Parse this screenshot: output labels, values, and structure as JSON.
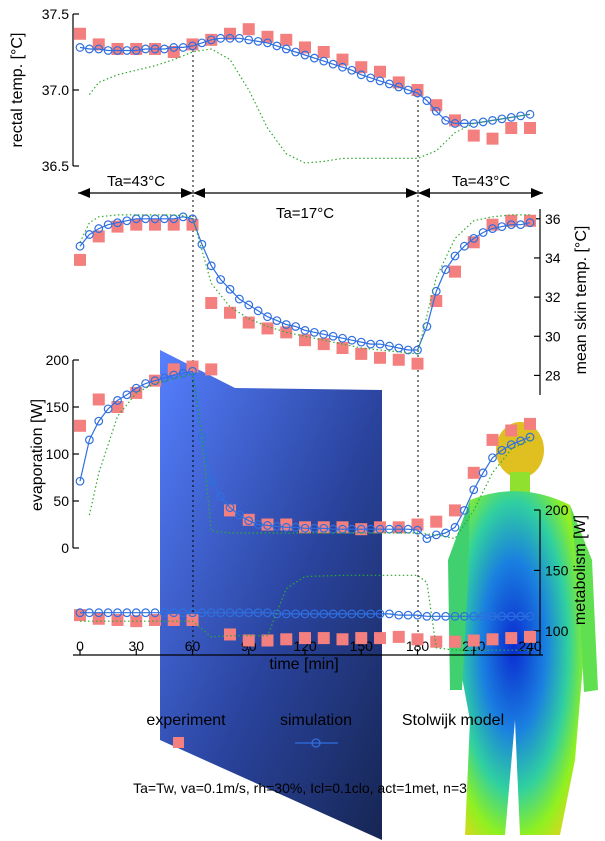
{
  "colors": {
    "experiment": "#f47f7f",
    "simulation": "#2f6fe0",
    "stolwijk": "#2faa2f",
    "panel_light": "#4d79ff",
    "panel_dark": "#0a1a4a"
  },
  "periods": [
    {
      "label": "Ta=43°C",
      "from": 0,
      "to": 60
    },
    {
      "label": "Ta=17°C",
      "from": 60,
      "to": 180
    },
    {
      "label": "Ta=43°C",
      "from": 180,
      "to": 240
    }
  ],
  "legend": {
    "experiment": "experiment",
    "simulation": "simulation",
    "stolwijk": "Stolwijk model"
  },
  "footnote": "Ta=Tw, va=0.1m/s, rh=30%, Icl=0.1clo, act=1met, n=3",
  "chart_data": [
    {
      "type": "line",
      "ylabel": "rectal temp. [°C]",
      "ylim": [
        36.5,
        37.5
      ],
      "yticks": [
        "37.5",
        "37.0",
        "36.5"
      ],
      "ytick_values": [
        37.5,
        37.0,
        36.5
      ],
      "xlim": [
        0,
        240
      ],
      "series": [
        {
          "name": "experiment",
          "style": "markers",
          "x": [
            0,
            10,
            20,
            30,
            40,
            50,
            60,
            70,
            80,
            90,
            100,
            110,
            120,
            130,
            140,
            150,
            160,
            170,
            180,
            190,
            200,
            210,
            220,
            230,
            240
          ],
          "y": [
            37.37,
            37.3,
            37.27,
            37.27,
            37.27,
            37.25,
            37.3,
            37.33,
            37.37,
            37.4,
            37.35,
            37.33,
            37.28,
            37.25,
            37.2,
            37.15,
            37.12,
            37.05,
            37.0,
            36.9,
            36.8,
            36.7,
            36.68,
            36.75,
            36.75
          ]
        },
        {
          "name": "simulation",
          "style": "line-circles",
          "x": [
            0,
            5,
            10,
            15,
            20,
            25,
            30,
            35,
            40,
            45,
            50,
            55,
            60,
            65,
            70,
            75,
            80,
            85,
            90,
            95,
            100,
            105,
            110,
            115,
            120,
            125,
            130,
            135,
            140,
            145,
            150,
            155,
            160,
            165,
            170,
            175,
            180,
            185,
            190,
            195,
            200,
            205,
            210,
            215,
            220,
            225,
            230,
            235,
            240
          ],
          "y": [
            37.28,
            37.27,
            37.27,
            37.26,
            37.26,
            37.26,
            37.26,
            37.27,
            37.27,
            37.27,
            37.28,
            37.28,
            37.29,
            37.31,
            37.33,
            37.34,
            37.34,
            37.34,
            37.33,
            37.32,
            37.31,
            37.29,
            37.27,
            37.25,
            37.23,
            37.21,
            37.19,
            37.17,
            37.15,
            37.13,
            37.1,
            37.08,
            37.06,
            37.04,
            37.02,
            37.0,
            36.98,
            36.93,
            36.86,
            36.8,
            36.78,
            36.78,
            36.78,
            36.79,
            36.8,
            36.81,
            36.82,
            36.83,
            36.84
          ]
        },
        {
          "name": "Stolwijk model",
          "style": "dotted",
          "x": [
            5,
            10,
            20,
            30,
            40,
            50,
            60,
            70,
            80,
            90,
            100,
            110,
            120,
            130,
            140,
            150,
            160,
            170,
            180,
            190,
            200,
            210,
            220,
            230,
            240
          ],
          "y": [
            36.97,
            37.05,
            37.1,
            37.13,
            37.16,
            37.2,
            37.25,
            37.27,
            37.2,
            37.0,
            36.75,
            36.58,
            36.52,
            36.53,
            36.55,
            36.55,
            36.55,
            36.55,
            36.55,
            36.6,
            36.72,
            36.78,
            36.8,
            36.82,
            36.84
          ]
        }
      ]
    },
    {
      "type": "line",
      "ylabel": "mean skin temp. [°C]",
      "ylim": [
        27,
        36.5
      ],
      "yticks": [
        "36",
        "34",
        "32",
        "30",
        "28"
      ],
      "ytick_values": [
        36,
        34,
        32,
        30,
        28
      ],
      "xlim": [
        0,
        240
      ],
      "series": [
        {
          "name": "experiment",
          "style": "markers",
          "x": [
            0,
            10,
            20,
            30,
            40,
            50,
            60,
            70,
            80,
            90,
            100,
            110,
            120,
            130,
            140,
            150,
            160,
            170,
            180,
            190,
            200,
            210,
            220,
            230,
            240
          ],
          "y": [
            33.9,
            35.1,
            35.6,
            35.7,
            35.7,
            35.7,
            35.7,
            31.7,
            31.2,
            30.7,
            30.4,
            30.2,
            29.8,
            29.6,
            29.4,
            29.1,
            28.9,
            28.8,
            28.6,
            31.8,
            33.3,
            34.8,
            35.7,
            35.9,
            35.9
          ]
        },
        {
          "name": "simulation",
          "style": "line-circles",
          "x": [
            0,
            5,
            10,
            15,
            20,
            25,
            30,
            35,
            40,
            45,
            50,
            55,
            60,
            65,
            70,
            75,
            80,
            85,
            90,
            95,
            100,
            105,
            110,
            115,
            120,
            125,
            130,
            135,
            140,
            145,
            150,
            155,
            160,
            165,
            170,
            175,
            180,
            185,
            190,
            195,
            200,
            205,
            210,
            215,
            220,
            225,
            230,
            235,
            240
          ],
          "y": [
            34.6,
            35.2,
            35.5,
            35.7,
            35.8,
            35.9,
            36.0,
            36.0,
            36.0,
            36.0,
            36.0,
            36.1,
            36.0,
            34.7,
            33.6,
            32.9,
            32.4,
            31.9,
            31.6,
            31.3,
            31.0,
            30.8,
            30.6,
            30.5,
            30.3,
            30.2,
            30.1,
            30.0,
            29.9,
            29.8,
            29.7,
            29.6,
            29.6,
            29.5,
            29.4,
            29.3,
            29.3,
            30.5,
            32.3,
            33.4,
            34.1,
            34.6,
            35.0,
            35.3,
            35.5,
            35.6,
            35.7,
            35.7,
            35.8
          ]
        },
        {
          "name": "Stolwijk model",
          "style": "dotted",
          "x": [
            0,
            5,
            10,
            20,
            30,
            40,
            50,
            60,
            70,
            80,
            90,
            100,
            110,
            120,
            130,
            140,
            150,
            160,
            170,
            180,
            190,
            200,
            210,
            220,
            230,
            240
          ],
          "y": [
            34.8,
            35.8,
            36.1,
            36.2,
            36.2,
            36.2,
            36.2,
            36.1,
            32.7,
            31.5,
            30.9,
            30.5,
            30.2,
            30.0,
            29.8,
            29.6,
            29.4,
            29.3,
            29.2,
            29.1,
            33.0,
            35.0,
            35.9,
            36.1,
            36.2,
            36.2
          ]
        }
      ]
    },
    {
      "type": "line",
      "ylabel": "evaporation [W]",
      "ylim": [
        0,
        200
      ],
      "yticks": [
        "200",
        "150",
        "100",
        "50",
        "0"
      ],
      "ytick_values": [
        200,
        150,
        100,
        50,
        0
      ],
      "xlim": [
        0,
        240
      ],
      "series": [
        {
          "name": "experiment",
          "style": "markers",
          "x": [
            0,
            10,
            20,
            30,
            40,
            50,
            60,
            70,
            80,
            90,
            100,
            110,
            120,
            130,
            140,
            150,
            160,
            170,
            180,
            190,
            200,
            210,
            220,
            230,
            240
          ],
          "y": [
            130,
            158,
            150,
            165,
            178,
            190,
            193,
            190,
            40,
            30,
            25,
            25,
            22,
            22,
            22,
            20,
            22,
            22,
            25,
            28,
            40,
            80,
            115,
            125,
            132
          ]
        },
        {
          "name": "simulation",
          "style": "line-circles",
          "x": [
            0,
            5,
            10,
            15,
            20,
            25,
            30,
            35,
            40,
            45,
            50,
            55,
            60,
            65,
            70,
            75,
            80,
            85,
            90,
            95,
            100,
            105,
            110,
            115,
            120,
            125,
            130,
            135,
            140,
            145,
            150,
            155,
            160,
            165,
            170,
            175,
            180,
            185,
            190,
            195,
            200,
            205,
            210,
            215,
            220,
            225,
            230,
            235,
            240
          ],
          "y": [
            71,
            115,
            135,
            148,
            157,
            163,
            170,
            175,
            178,
            181,
            184,
            186,
            188,
            118,
            72,
            55,
            43,
            35,
            29,
            25,
            24,
            23,
            22,
            22,
            21,
            21,
            21,
            20,
            20,
            20,
            20,
            20,
            20,
            20,
            20,
            20,
            19,
            10,
            14,
            16,
            22,
            40,
            62,
            80,
            96,
            104,
            110,
            114,
            118
          ]
        },
        {
          "name": "Stolwijk model",
          "style": "dotted",
          "x": [
            5,
            10,
            20,
            30,
            40,
            50,
            60,
            65,
            70,
            80,
            90,
            100,
            120,
            140,
            160,
            180,
            190,
            200,
            210,
            220,
            230,
            240
          ],
          "y": [
            35,
            80,
            140,
            165,
            175,
            180,
            185,
            120,
            18,
            16,
            16,
            16,
            16,
            16,
            16,
            16,
            14,
            10,
            40,
            80,
            105,
            115
          ]
        }
      ]
    },
    {
      "type": "line",
      "ylabel": "metabolism [W]",
      "ylim": [
        80,
        200
      ],
      "yticks": [
        "200",
        "150",
        "100"
      ],
      "ytick_values": [
        200,
        150,
        100
      ],
      "xlim": [
        0,
        240
      ],
      "xticks": [
        0,
        30,
        60,
        90,
        120,
        150,
        180,
        210,
        240
      ],
      "xlabel": "time [min]",
      "series": [
        {
          "name": "experiment",
          "style": "markers",
          "x": [
            0,
            10,
            20,
            30,
            40,
            50,
            60,
            80,
            90,
            100,
            110,
            120,
            130,
            140,
            150,
            160,
            170,
            180,
            190,
            200,
            210,
            220,
            230,
            240
          ],
          "y": [
            113,
            110,
            109,
            108,
            109,
            109,
            109,
            97,
            92,
            92,
            93,
            94,
            94,
            93,
            94,
            94,
            95,
            93,
            91,
            91,
            92,
            93,
            94,
            95
          ]
        },
        {
          "name": "simulation",
          "style": "line-circles",
          "x": [
            0,
            5,
            10,
            15,
            20,
            25,
            30,
            35,
            40,
            45,
            50,
            55,
            60,
            65,
            70,
            75,
            80,
            85,
            90,
            95,
            100,
            105,
            110,
            115,
            120,
            125,
            130,
            135,
            140,
            145,
            150,
            155,
            160,
            165,
            170,
            175,
            180,
            185,
            190,
            195,
            200,
            205,
            210,
            215,
            220,
            225,
            230,
            235,
            240
          ],
          "y": [
            115,
            115,
            115,
            115,
            115,
            115,
            115,
            115,
            115,
            115,
            115,
            115,
            115,
            115,
            115,
            115,
            115,
            115,
            115,
            115,
            115,
            114,
            114,
            114,
            114,
            114,
            114,
            114,
            114,
            114,
            114,
            114,
            114,
            114,
            113,
            113,
            113,
            112,
            112,
            112,
            112,
            112,
            112,
            112,
            112,
            112,
            112,
            112,
            112
          ]
        },
        {
          "name": "Stolwijk model",
          "style": "dotted",
          "x": [
            0,
            20,
            40,
            60,
            70,
            80,
            90,
            100,
            110,
            120,
            140,
            160,
            180,
            185,
            190,
            200,
            220,
            240
          ],
          "y": [
            108,
            108,
            108,
            108,
            95,
            96,
            96,
            96,
            135,
            145,
            146,
            146,
            146,
            140,
            86,
            84,
            84,
            84
          ]
        }
      ]
    }
  ]
}
